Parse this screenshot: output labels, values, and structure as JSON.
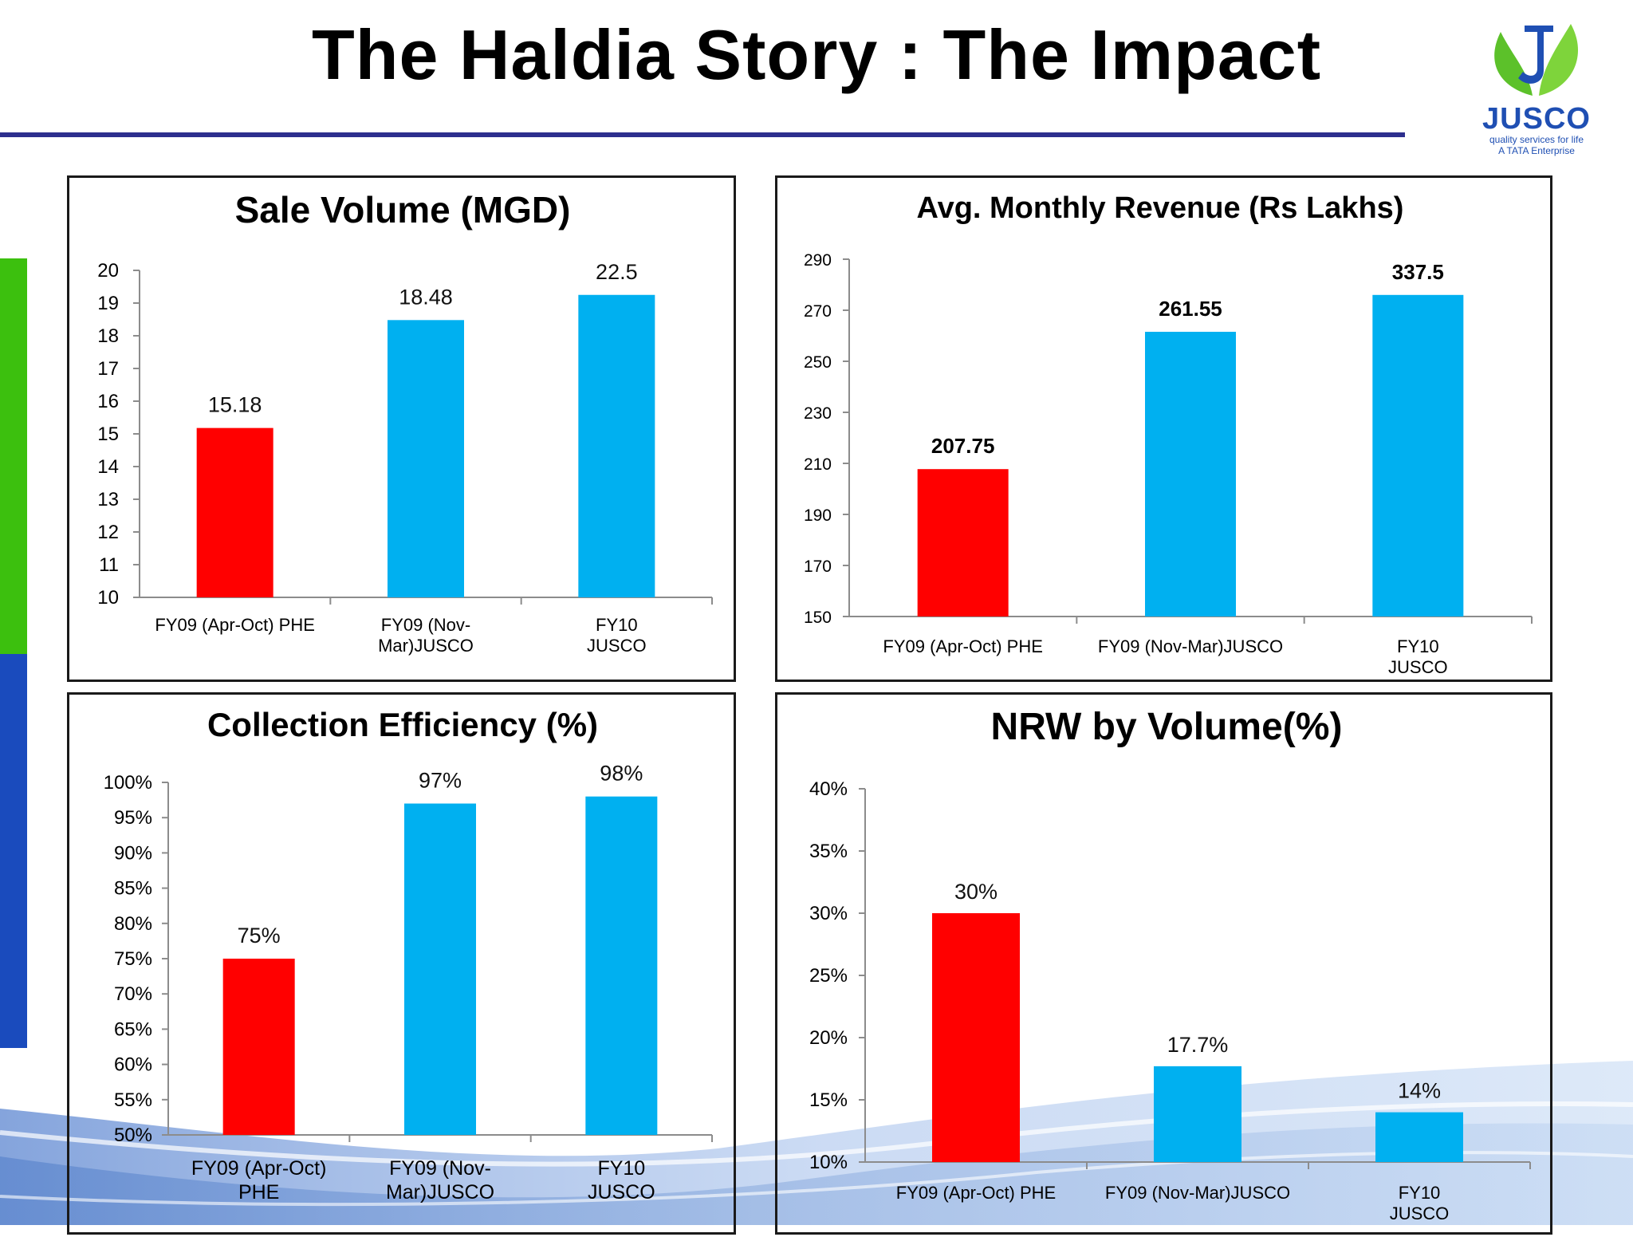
{
  "page": {
    "title": "The Haldia Story : The Impact",
    "logo": {
      "word": "JUSCO",
      "tagline": "quality services for life",
      "tagline2": "A TATA Enterprise"
    },
    "colors": {
      "accent_rule": "#2d2f8e",
      "side_green": "#3cc00e",
      "side_blue": "#1a4bbd",
      "bar_red": "#ff0000",
      "bar_blue": "#00b0f0"
    }
  },
  "chart_data": [
    {
      "type": "bar",
      "title": "Sale Volume (MGD)",
      "categories": [
        "FY09 (Apr-Oct) PHE",
        "FY09 (Nov-Mar)JUSCO",
        "FY10 JUSCO"
      ],
      "category_lines": [
        [
          "FY09 (Apr-Oct) PHE"
        ],
        [
          "FY09 (Nov-",
          "Mar)JUSCO"
        ],
        [
          "FY10",
          "JUSCO"
        ]
      ],
      "values": [
        15.18,
        18.48,
        22.5
      ],
      "bar_heights": [
        15.18,
        18.48,
        19.25
      ],
      "data_labels": [
        "15.18",
        "18.48",
        "22.5"
      ],
      "colors": [
        "#ff0000",
        "#00b0f0",
        "#00b0f0"
      ],
      "ylim": [
        10,
        20
      ],
      "yticks": [
        "10",
        "11",
        "12",
        "13",
        "14",
        "15",
        "16",
        "17",
        "18",
        "19",
        "20"
      ],
      "xlabel": "",
      "ylabel": ""
    },
    {
      "type": "bar",
      "title": "Avg. Monthly Revenue (Rs Lakhs)",
      "categories": [
        "FY09 (Apr-Oct) PHE",
        "FY09 (Nov-Mar)JUSCO",
        "FY10 JUSCO"
      ],
      "category_lines": [
        [
          "FY09 (Apr-Oct) PHE"
        ],
        [
          "FY09 (Nov-Mar)JUSCO"
        ],
        [
          "FY10",
          "JUSCO"
        ]
      ],
      "values": [
        207.75,
        261.55,
        337.5
      ],
      "bar_heights": [
        207.75,
        261.55,
        276
      ],
      "data_labels": [
        "207.75",
        "261.55",
        "337.5"
      ],
      "colors": [
        "#ff0000",
        "#00b0f0",
        "#00b0f0"
      ],
      "ylim": [
        150,
        290
      ],
      "yticks": [
        "150",
        "170",
        "190",
        "210",
        "230",
        "250",
        "270",
        "290"
      ],
      "xlabel": "",
      "ylabel": ""
    },
    {
      "type": "bar",
      "title": "Collection Efficiency (%)",
      "categories": [
        "FY09 (Apr-Oct) PHE",
        "FY09 (Nov-Mar)JUSCO",
        "FY10 JUSCO"
      ],
      "category_lines": [
        [
          "FY09 (Apr-Oct)",
          "PHE"
        ],
        [
          "FY09 (Nov-",
          "Mar)JUSCO"
        ],
        [
          "FY10",
          "JUSCO"
        ]
      ],
      "values": [
        75,
        97,
        98
      ],
      "bar_heights": [
        75,
        97,
        98
      ],
      "data_labels": [
        "75%",
        "97%",
        "98%"
      ],
      "colors": [
        "#ff0000",
        "#00b0f0",
        "#00b0f0"
      ],
      "ylim": [
        50,
        100
      ],
      "yticks": [
        "50%",
        "55%",
        "60%",
        "65%",
        "70%",
        "75%",
        "80%",
        "85%",
        "90%",
        "95%",
        "100%"
      ],
      "xlabel": "",
      "ylabel": ""
    },
    {
      "type": "bar",
      "title": "NRW by Volume(%)",
      "categories": [
        "FY09 (Apr-Oct) PHE",
        "FY09 (Nov-Mar)JUSCO",
        "FY10 JUSCO"
      ],
      "category_lines": [
        [
          "FY09 (Apr-Oct) PHE"
        ],
        [
          "FY09 (Nov-Mar)JUSCO"
        ],
        [
          "FY10",
          "JUSCO"
        ]
      ],
      "values": [
        30,
        17.7,
        14
      ],
      "bar_heights": [
        30,
        17.7,
        14
      ],
      "data_labels": [
        "30%",
        "17.7%",
        "14%"
      ],
      "colors": [
        "#ff0000",
        "#00b0f0",
        "#00b0f0"
      ],
      "ylim": [
        10,
        40
      ],
      "yticks": [
        "10%",
        "15%",
        "20%",
        "25%",
        "30%",
        "35%",
        "40%"
      ],
      "xlabel": "",
      "ylabel": ""
    }
  ]
}
